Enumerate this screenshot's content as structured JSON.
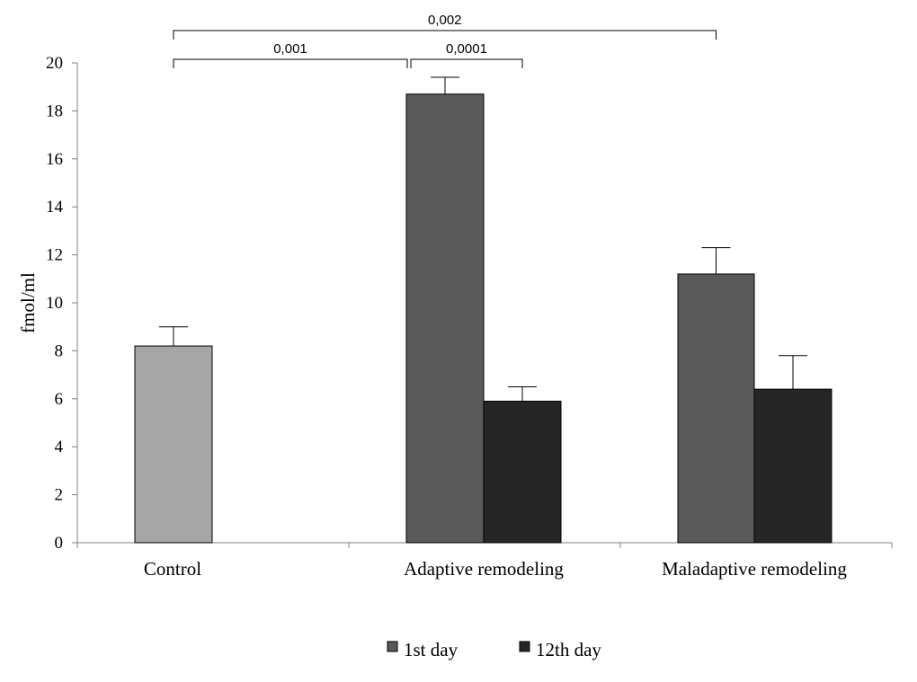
{
  "chart_data": {
    "type": "bar",
    "title": "",
    "ylabel": "fmol/ml",
    "xlabel": "",
    "ylim": [
      0,
      20
    ],
    "ytick_step": 2,
    "grid": false,
    "legend_position": "bottom",
    "categories": [
      "Control",
      "Adaptive remodeling",
      "Maladaptive remodeling"
    ],
    "bars": [
      {
        "category": "Control",
        "series": "Control",
        "value": 8.2,
        "error": 0.8,
        "color": "#a6a6a6"
      },
      {
        "category": "Adaptive remodeling",
        "series": "1st day",
        "value": 18.7,
        "error": 0.7,
        "color": "#595959"
      },
      {
        "category": "Adaptive remodeling",
        "series": "12th day",
        "value": 5.9,
        "error": 0.6,
        "color": "#262626"
      },
      {
        "category": "Maladaptive remodeling",
        "series": "1st day",
        "value": 11.2,
        "error": 1.1,
        "color": "#595959"
      },
      {
        "category": "Maladaptive remodeling",
        "series": "12th day",
        "value": 6.4,
        "error": 1.4,
        "color": "#262626"
      }
    ],
    "legend": [
      {
        "label": "1st day",
        "color": "#595959"
      },
      {
        "label": "12th day",
        "color": "#262626"
      }
    ],
    "significance": [
      {
        "label": "0,002",
        "from_bar": 0,
        "to_bar": 3
      },
      {
        "label": "0,001",
        "from_bar": 0,
        "to_bar": 1
      },
      {
        "label": "0,0001",
        "from_bar": 1,
        "to_bar": 2
      }
    ]
  }
}
